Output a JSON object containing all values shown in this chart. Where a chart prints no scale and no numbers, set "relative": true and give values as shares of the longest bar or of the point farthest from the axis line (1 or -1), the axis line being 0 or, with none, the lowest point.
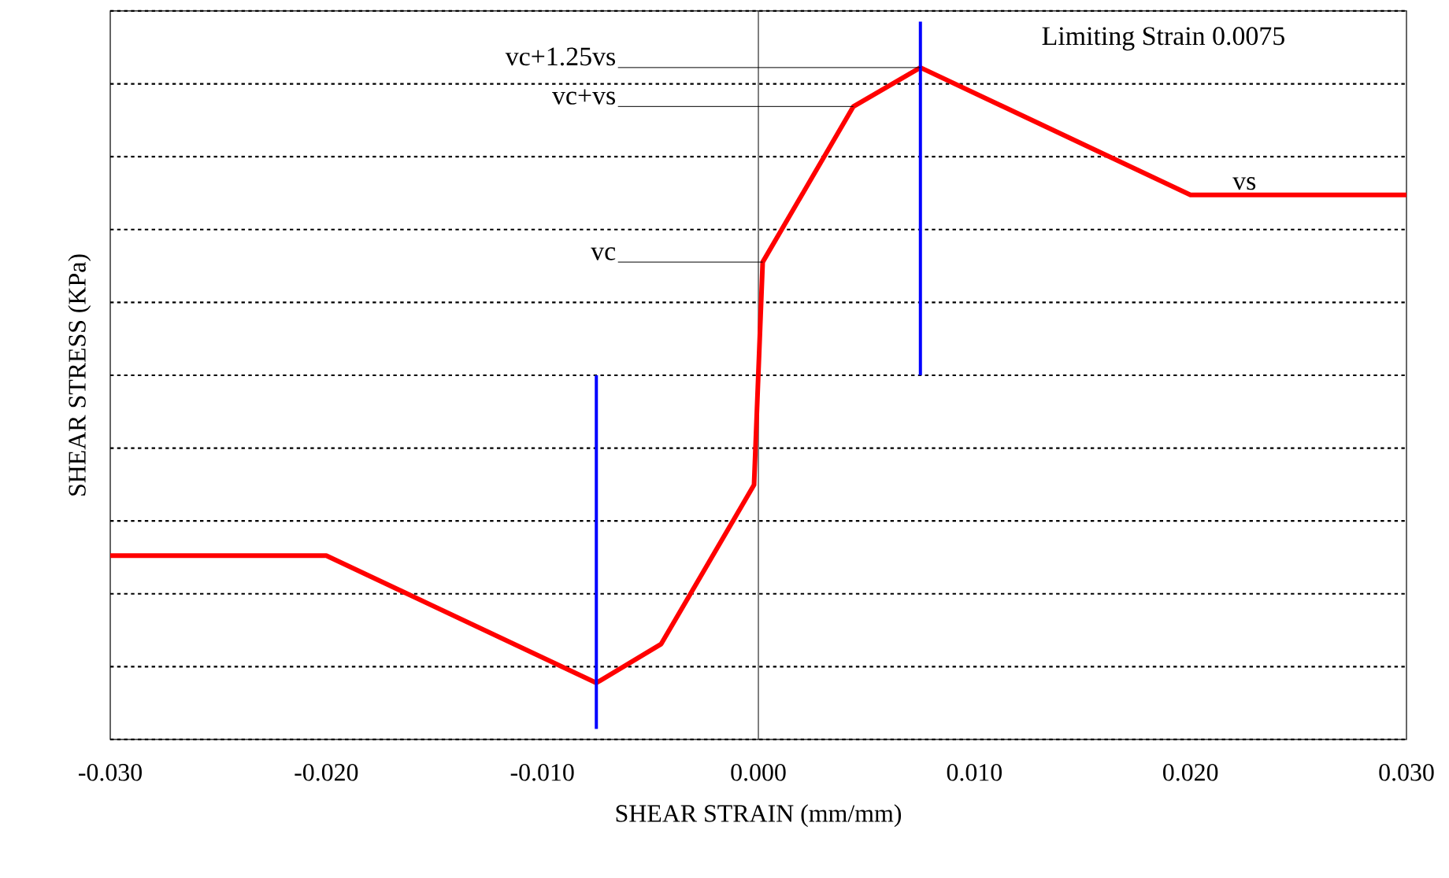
{
  "chart_data": {
    "type": "line",
    "relative": true,
    "xlabel": "SHEAR STRAIN (mm/mm)",
    "ylabel": "SHEAR STRESS (KPa)",
    "xlim": [
      -0.03,
      0.03
    ],
    "xticks": [
      {
        "value": -0.03,
        "label": "-0.030"
      },
      {
        "value": -0.02,
        "label": "-0.020"
      },
      {
        "value": -0.01,
        "label": "-0.010"
      },
      {
        "value": 0,
        "label": "0.000"
      },
      {
        "value": 0.01,
        "label": "0.010"
      },
      {
        "value": 0.02,
        "label": "0.020"
      },
      {
        "value": 0.03,
        "label": "0.030"
      }
    ],
    "tick_labels": "x",
    "grid": "y",
    "ref_lines": [
      {
        "axis": "x",
        "value": 0
      }
    ],
    "series": [
      {
        "color": "#ff0000",
        "x": [
          -0.03,
          -0.02,
          -0.0075,
          -0.0045,
          -0.0002,
          0.0002,
          0.0044,
          0.0075,
          0.02,
          0.03
        ],
        "values": [
          -0.51,
          -0.51,
          -0.87,
          -0.76,
          -0.31,
          0.32,
          0.76,
          0.87,
          0.51,
          0.51
        ]
      },
      {
        "color": "#0000ff",
        "x": [
          0.0075,
          0.0075
        ],
        "values": [
          0,
          1
        ]
      },
      {
        "color": "#0000ff",
        "x": [
          -0.0075,
          -0.0075
        ],
        "values": [
          0,
          -1
        ]
      }
    ],
    "annotations": [
      {
        "text": "vc+1.25vs",
        "x": 0.0075,
        "y": 0.87
      },
      {
        "text": "vc+vs",
        "x": 0.0044,
        "y": 0.76
      },
      {
        "text": "vc",
        "x": 0.0002,
        "y": 0.32
      },
      {
        "text": "vs",
        "x": 0.0225,
        "y": 0.51
      },
      "Limiting Strain 0.0075"
    ]
  }
}
